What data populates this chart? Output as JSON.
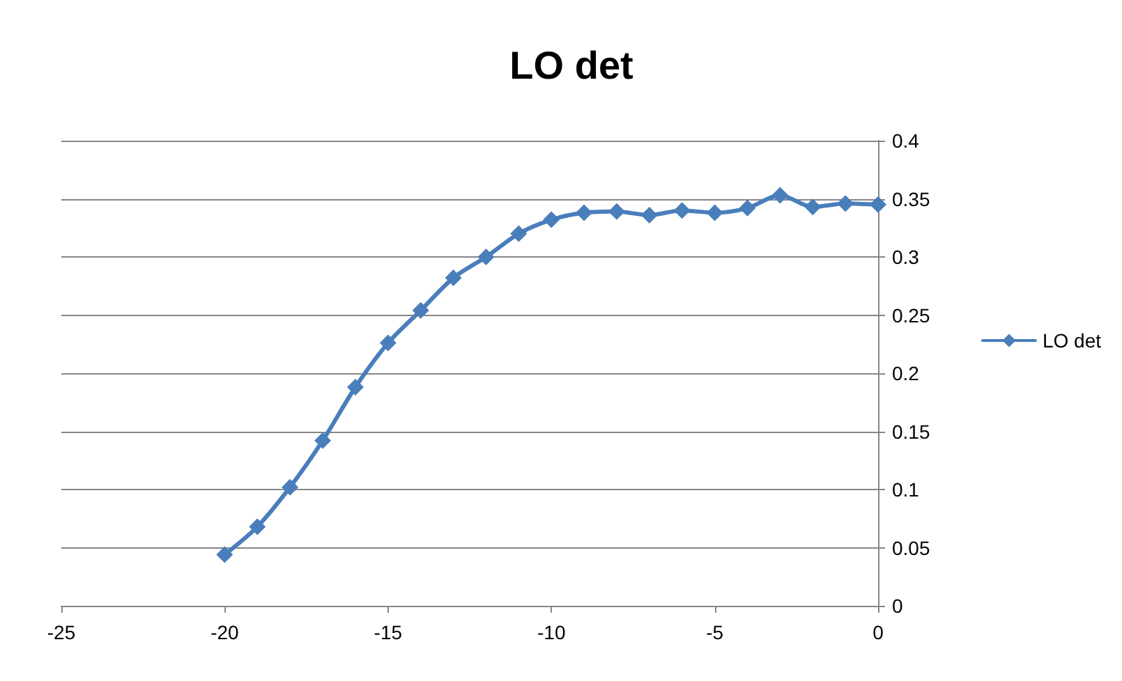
{
  "chart_data": {
    "type": "line",
    "title": "LO det",
    "x": [
      -20,
      -19,
      -18,
      -17,
      -16,
      -15,
      -14,
      -13,
      -12,
      -11,
      -10,
      -9,
      -8,
      -7,
      -6,
      -5,
      -4,
      -3,
      -2,
      -1,
      0
    ],
    "series": [
      {
        "name": "LO det",
        "color": "#4a7ebb",
        "values": [
          0.044,
          0.068,
          0.102,
          0.142,
          0.188,
          0.226,
          0.254,
          0.282,
          0.3,
          0.32,
          0.332,
          0.338,
          0.339,
          0.336,
          0.34,
          0.338,
          0.342,
          0.353,
          0.343,
          0.346,
          0.345
        ]
      }
    ],
    "xlim": [
      -25,
      0
    ],
    "xticks": [
      -25,
      -20,
      -15,
      -10,
      -5,
      0
    ],
    "ylim": [
      0,
      0.4
    ],
    "yticks": [
      0,
      0.05,
      0.1,
      0.15,
      0.2,
      0.25,
      0.3,
      0.35,
      0.4
    ],
    "grid": "y",
    "legend": "right",
    "marker": "diamond",
    "line_style": "solid"
  }
}
